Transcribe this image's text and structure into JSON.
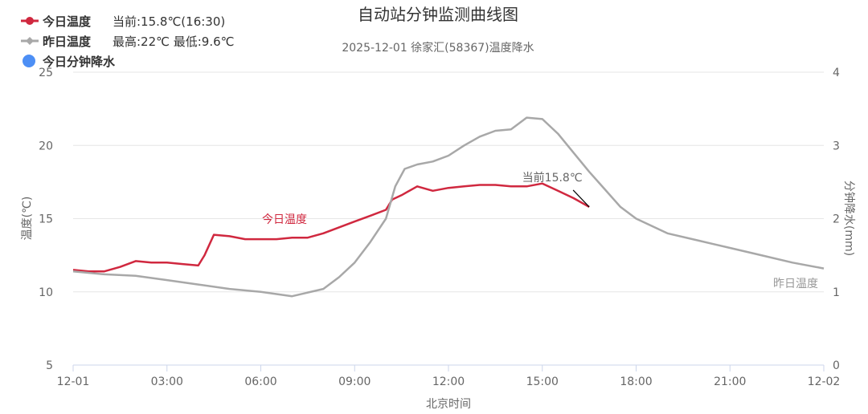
{
  "chart_data": {
    "type": "line",
    "title": "自动站分钟监测曲线图",
    "subtitle": "2025-12-01 徐家汇(58367)温度降水",
    "xlabel": "北京时间",
    "ylabel": "温度(℃)",
    "y2label": "分钟降水(mm)",
    "xticks": [
      "12-01",
      "03:00",
      "06:00",
      "09:00",
      "12:00",
      "15:00",
      "18:00",
      "21:00",
      "12-02"
    ],
    "xlim_hours": [
      0,
      24
    ],
    "ylim": [
      5,
      25
    ],
    "yticks": [
      5,
      10,
      15,
      20,
      25
    ],
    "y2lim": [
      0,
      4
    ],
    "y2ticks": [
      0,
      1,
      2,
      3,
      4
    ],
    "grid": true,
    "legend": [
      {
        "name": "今日温度",
        "note": "当前:15.8℃(16:30)",
        "color": "#d0283f"
      },
      {
        "name": "昨日温度",
        "note": "最高:22℃ 最低:9.6℃",
        "color": "#a8a8a8"
      },
      {
        "name": "今日分钟降水",
        "note": "",
        "color": "#4d8ff5"
      }
    ],
    "series": [
      {
        "name": "今日温度",
        "color": "#d0283f",
        "label": "今日温度",
        "x": [
          0,
          0.5,
          1,
          1.5,
          2,
          2.5,
          3,
          3.5,
          4,
          4.2,
          4.5,
          5,
          5.5,
          6,
          6.5,
          7,
          7.5,
          8,
          8.5,
          9,
          9.5,
          10,
          10.2,
          10.5,
          11,
          11.5,
          12,
          12.5,
          13,
          13.5,
          14,
          14.5,
          15,
          15.5,
          16,
          16.5
        ],
        "y": [
          11.5,
          11.4,
          11.4,
          11.7,
          12.1,
          12.0,
          12.0,
          11.9,
          11.8,
          12.5,
          13.9,
          13.8,
          13.6,
          13.6,
          13.6,
          13.7,
          13.7,
          14.0,
          14.4,
          14.8,
          15.2,
          15.6,
          16.3,
          16.6,
          17.2,
          16.9,
          17.1,
          17.2,
          17.3,
          17.3,
          17.2,
          17.2,
          17.4,
          16.9,
          16.4,
          15.8
        ]
      },
      {
        "name": "昨日温度",
        "color": "#a8a8a8",
        "label": "昨日温度",
        "x": [
          0,
          1,
          2,
          3,
          4,
          5,
          6,
          7,
          8,
          8.5,
          9,
          9.5,
          10,
          10.3,
          10.6,
          11,
          11.5,
          12,
          12.5,
          13,
          13.5,
          14,
          14.5,
          15,
          15.5,
          16,
          16.5,
          17,
          17.5,
          18,
          19,
          20,
          21,
          22,
          23,
          24
        ],
        "y": [
          11.4,
          11.2,
          11.1,
          10.8,
          10.5,
          10.2,
          10.0,
          9.7,
          10.2,
          11.0,
          12.0,
          13.4,
          15.0,
          17.2,
          18.4,
          18.7,
          18.9,
          19.3,
          20.0,
          20.6,
          21.0,
          21.1,
          21.9,
          21.8,
          20.8,
          19.5,
          18.2,
          17.0,
          15.8,
          15.0,
          14.0,
          13.5,
          13.0,
          12.5,
          12.0,
          11.6
        ]
      },
      {
        "name": "今日分钟降水",
        "color": "#4d8ff5",
        "x": [],
        "y": []
      }
    ],
    "annotation": {
      "text": "当前15.8℃",
      "x": 16.5,
      "y": 15.8
    }
  }
}
